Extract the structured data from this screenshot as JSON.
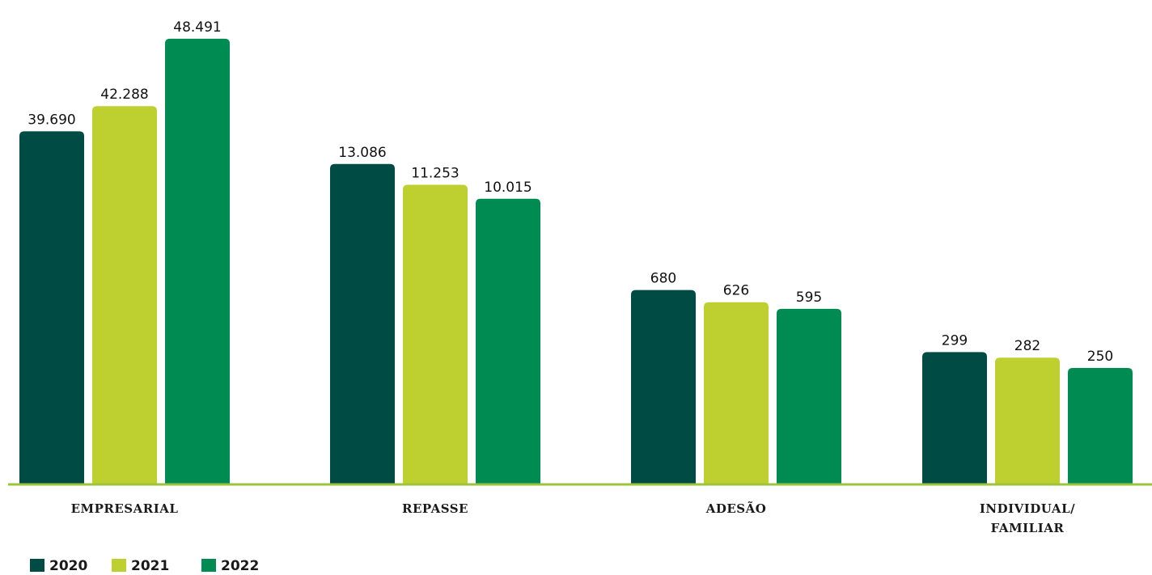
{
  "chart_data": {
    "type": "bar",
    "categories": [
      [
        "EMPRESARIAL"
      ],
      [
        "REPASSE"
      ],
      [
        "ADESÃO"
      ],
      [
        "INDIVIDUAL/",
        "FAMILIAR"
      ]
    ],
    "series": [
      {
        "name": "2020",
        "color": "#004c45",
        "values": [
          39690,
          13086,
          680,
          299
        ],
        "labels": [
          "39.690",
          "13.086",
          "680",
          "299"
        ]
      },
      {
        "name": "2021",
        "color": "#bed030",
        "values": [
          42288,
          11253,
          626,
          282
        ],
        "labels": [
          "42.288",
          "11.253",
          "626",
          "282"
        ]
      },
      {
        "name": "2022",
        "color": "#008b52",
        "values": [
          48491,
          10015,
          595,
          250
        ],
        "labels": [
          "48.491",
          "10.015",
          "595",
          "250"
        ]
      }
    ],
    "legend_position": "bottom-left",
    "axis_line_color": "#9cc33a",
    "y_scale": "broken / non-linear (bar heights not proportional across categories)",
    "grid": false
  }
}
